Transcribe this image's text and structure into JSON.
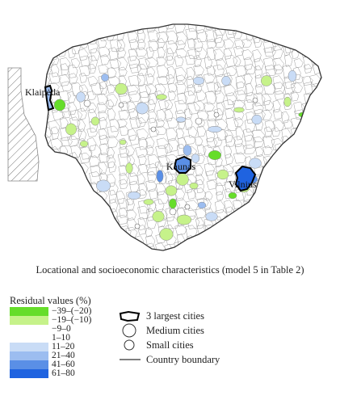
{
  "map": {
    "cities": [
      {
        "name": "Klaipėda",
        "display": "Klaipėda"
      },
      {
        "name": "Kaunas",
        "display": "Kaunas"
      },
      {
        "name": "Vilnius",
        "display": "Vilnius"
      }
    ]
  },
  "caption": "Locational and socioeconomic characteristics (model 5 in Table 2)",
  "legend": {
    "residual_title": "Residual values (%)",
    "residuals": [
      {
        "label": "−39–(−20)",
        "color": "#66dd2a"
      },
      {
        "label": "−19–(−10)",
        "color": "#c6f28a"
      },
      {
        "label": "−9–0",
        "color": "#ffffff"
      },
      {
        "label": "1–10",
        "color": "#ffffff"
      },
      {
        "label": "11–20",
        "color": "#c9dcf6"
      },
      {
        "label": "21–40",
        "color": "#9cbdf0"
      },
      {
        "label": "41–60",
        "color": "#5a8fe6"
      },
      {
        "label": "61–80",
        "color": "#1f63e0"
      }
    ],
    "symbols": [
      {
        "label": "3 largest cities",
        "icon": "largest-city-polygon-icon"
      },
      {
        "label": "Medium cities",
        "icon": "medium-city-circle-icon"
      },
      {
        "label": "Small cities",
        "icon": "small-city-circle-icon"
      },
      {
        "label": "Country boundary",
        "icon": "boundary-line-icon"
      }
    ]
  }
}
